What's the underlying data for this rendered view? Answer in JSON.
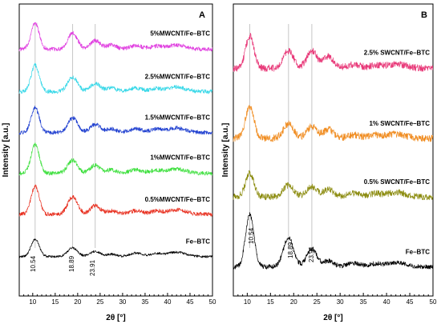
{
  "chart_data": [
    {
      "panel": "A",
      "type": "line",
      "xlabel": "2θ [°]",
      "ylabel": "Intensity [a.u.]",
      "xlim": [
        7,
        50
      ],
      "x_ticks": [
        10,
        15,
        20,
        25,
        30,
        35,
        40,
        45,
        50
      ],
      "peak_annotations": [
        {
          "x": 10.54,
          "label": "10.54"
        },
        {
          "x": 18.89,
          "label": "18.89"
        },
        {
          "x": 23.91,
          "label": "23.91"
        }
      ],
      "guides_x": [
        10.54,
        18.89,
        23.91
      ],
      "series": [
        {
          "name": "5%MWCNT/Fe–BTC",
          "color": "#e040e0",
          "baseline": 0.155,
          "peaks": [
            [
              10.54,
              0.09
            ],
            [
              18.89,
              0.055
            ],
            [
              23.91,
              0.03
            ],
            [
              27.5,
              0.015
            ]
          ],
          "noise": 0.007
        },
        {
          "name": "2.5%MWCNT/Fe–BTC",
          "color": "#38d8e8",
          "baseline": 0.3,
          "peaks": [
            [
              10.54,
              0.09
            ],
            [
              18.89,
              0.05
            ],
            [
              23.91,
              0.028
            ],
            [
              27.5,
              0.012
            ]
          ],
          "noise": 0.007
        },
        {
          "name": "1.5%MWCNT/Fe–BTC",
          "color": "#2040d0",
          "baseline": 0.44,
          "peaks": [
            [
              10.54,
              0.085
            ],
            [
              18.89,
              0.05
            ],
            [
              23.91,
              0.028
            ],
            [
              27.5,
              0.012
            ]
          ],
          "noise": 0.007
        },
        {
          "name": "1%MWCNT/Fe–BTC",
          "color": "#40e040",
          "baseline": 0.58,
          "peaks": [
            [
              10.54,
              0.1
            ],
            [
              18.89,
              0.045
            ],
            [
              23.91,
              0.028
            ],
            [
              27.5,
              0.012
            ]
          ],
          "noise": 0.007
        },
        {
          "name": "0.5%MWCNT/Fe–BTC",
          "color": "#e83020",
          "baseline": 0.72,
          "peaks": [
            [
              10.54,
              0.095
            ],
            [
              18.89,
              0.06
            ],
            [
              23.91,
              0.03
            ],
            [
              27.5,
              0.012
            ]
          ],
          "noise": 0.007
        },
        {
          "name": "Fe–BTC",
          "color": "#000000",
          "baseline": 0.865,
          "peaks": [
            [
              10.54,
              0.06
            ],
            [
              18.89,
              0.03
            ],
            [
              23.91,
              0.018
            ],
            [
              27.5,
              0.008
            ]
          ],
          "noise": 0.004
        }
      ]
    },
    {
      "panel": "B",
      "type": "line",
      "xlabel": "2θ [°]",
      "ylabel": "Intensity [a.u.]",
      "xlim": [
        7,
        50
      ],
      "x_ticks": [
        10,
        15,
        20,
        25,
        30,
        35,
        40,
        45,
        50
      ],
      "peak_annotations": [
        {
          "x": 10.54,
          "label": "10.54"
        },
        {
          "x": 18.89,
          "label": "18.89"
        },
        {
          "x": 23.91,
          "label": "23.91"
        }
      ],
      "guides_x": [
        10.54,
        18.89,
        23.91
      ],
      "series": [
        {
          "name": "2.5% SWCNT/Fe–BTC",
          "color": "#e83878",
          "baseline": 0.22,
          "peaks": [
            [
              10.54,
              0.11
            ],
            [
              18.89,
              0.06
            ],
            [
              23.91,
              0.06
            ],
            [
              27.5,
              0.04
            ]
          ],
          "noise": 0.012
        },
        {
          "name": "1% SWCNT/Fe–BTC",
          "color": "#f08c20",
          "baseline": 0.46,
          "peaks": [
            [
              10.54,
              0.11
            ],
            [
              18.89,
              0.05
            ],
            [
              23.91,
              0.04
            ],
            [
              27.5,
              0.03
            ]
          ],
          "noise": 0.012
        },
        {
          "name": "0.5% SWCNT/Fe–BTC",
          "color": "#8c8c10",
          "baseline": 0.66,
          "peaks": [
            [
              10.54,
              0.08
            ],
            [
              18.89,
              0.04
            ],
            [
              23.91,
              0.035
            ],
            [
              27.5,
              0.025
            ]
          ],
          "noise": 0.011
        },
        {
          "name": "Fe–BTC",
          "color": "#000000",
          "baseline": 0.9,
          "peaks": [
            [
              10.54,
              0.18
            ],
            [
              18.89,
              0.1
            ],
            [
              23.91,
              0.06
            ],
            [
              27.5,
              0.02
            ]
          ],
          "noise": 0.008
        }
      ]
    }
  ]
}
